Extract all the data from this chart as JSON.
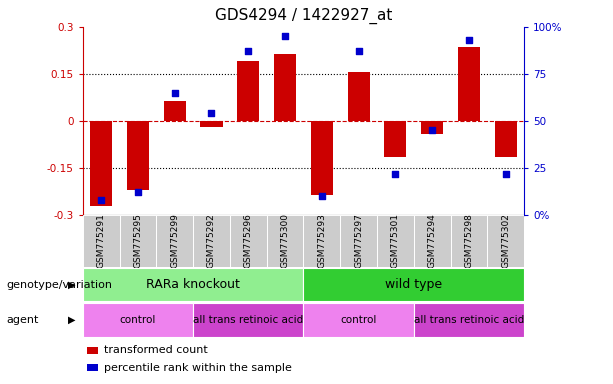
{
  "title": "GDS4294 / 1422927_at",
  "samples": [
    "GSM775291",
    "GSM775295",
    "GSM775299",
    "GSM775292",
    "GSM775296",
    "GSM775300",
    "GSM775293",
    "GSM775297",
    "GSM775301",
    "GSM775294",
    "GSM775298",
    "GSM775302"
  ],
  "bar_values": [
    -0.27,
    -0.22,
    0.065,
    -0.02,
    0.19,
    0.215,
    -0.235,
    0.155,
    -0.115,
    -0.04,
    0.235,
    -0.115
  ],
  "percentile_values": [
    8,
    12,
    65,
    54,
    87,
    95,
    10,
    87,
    22,
    45,
    93,
    22
  ],
  "ylim_left": [
    -0.3,
    0.3
  ],
  "ylim_right": [
    0,
    100
  ],
  "yticks_left": [
    -0.3,
    -0.15,
    0,
    0.15,
    0.3
  ],
  "yticks_right": [
    0,
    25,
    50,
    75,
    100
  ],
  "ytick_labels_left": [
    "-0.3",
    "-0.15",
    "0",
    "0.15",
    "0.3"
  ],
  "ytick_labels_right": [
    "0%",
    "25",
    "50",
    "75",
    "100%"
  ],
  "bar_color": "#cc0000",
  "scatter_color": "#0000cc",
  "zero_line_color": "#cc0000",
  "dot_line_color": "black",
  "genotype_groups": [
    {
      "label": "RARa knockout",
      "start": 0,
      "end": 5,
      "color": "#90ee90"
    },
    {
      "label": "wild type",
      "start": 6,
      "end": 11,
      "color": "#32cd32"
    }
  ],
  "agent_groups": [
    {
      "label": "control",
      "start": 0,
      "end": 2,
      "color": "#ee82ee"
    },
    {
      "label": "all trans retinoic acid",
      "start": 3,
      "end": 5,
      "color": "#cc44cc"
    },
    {
      "label": "control",
      "start": 6,
      "end": 8,
      "color": "#ee82ee"
    },
    {
      "label": "all trans retinoic acid",
      "start": 9,
      "end": 11,
      "color": "#cc44cc"
    }
  ],
  "legend_items": [
    {
      "label": "transformed count",
      "color": "#cc0000"
    },
    {
      "label": "percentile rank within the sample",
      "color": "#0000cc"
    }
  ],
  "genotype_label": "genotype/variation",
  "agent_label": "agent",
  "title_fontsize": 11,
  "tick_fontsize": 7.5,
  "label_fontsize": 9,
  "bar_width": 0.6
}
